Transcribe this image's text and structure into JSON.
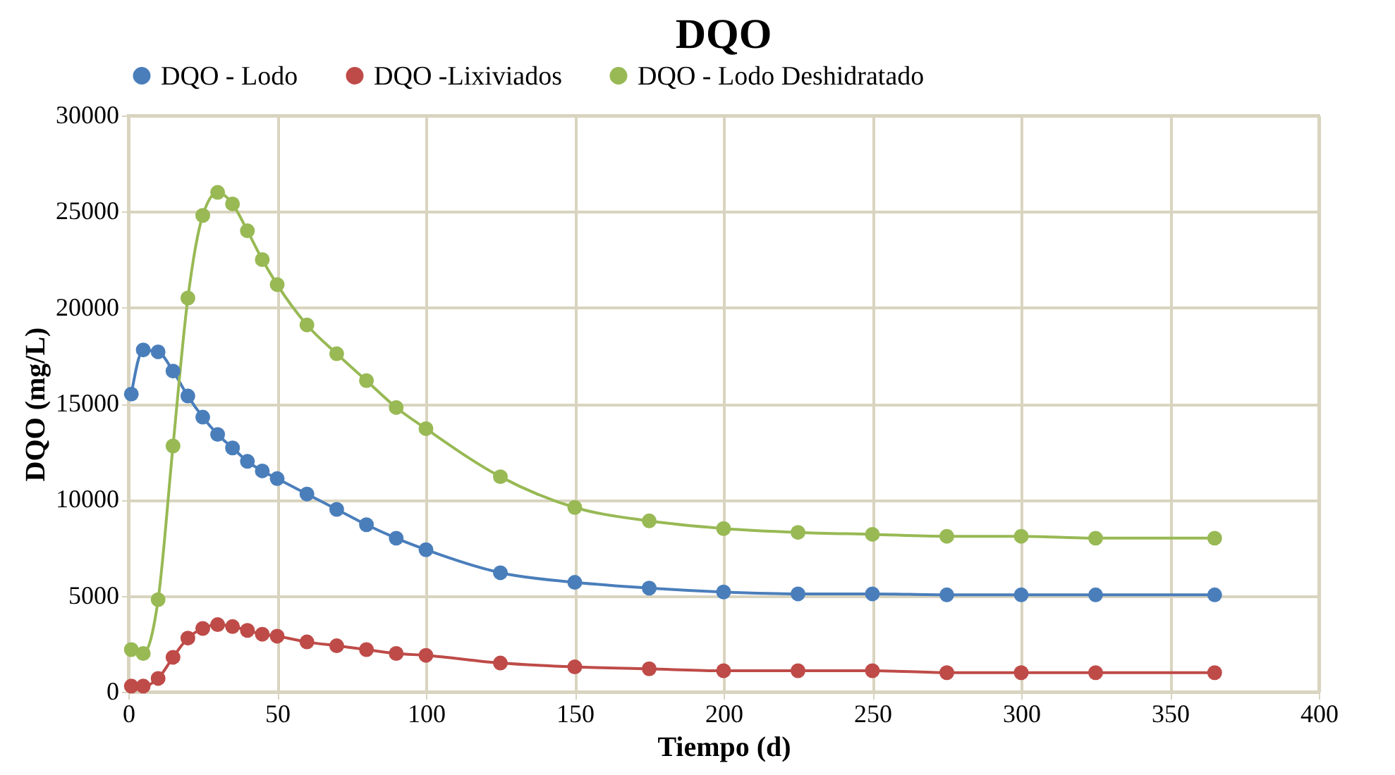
{
  "chart_data": {
    "type": "line",
    "title": "DQO",
    "xlabel": "Tiempo (d)",
    "ylabel": "DQO (mg/L)",
    "x": [
      1,
      5,
      10,
      15,
      20,
      25,
      30,
      35,
      40,
      45,
      50,
      60,
      70,
      80,
      90,
      100,
      125,
      150,
      175,
      200,
      225,
      250,
      275,
      300,
      325,
      365
    ],
    "series": [
      {
        "name": "DQO - Lodo",
        "color": "#4a7ebb",
        "values": [
          15500,
          17800,
          17700,
          16700,
          15400,
          14300,
          13400,
          12700,
          12000,
          11500,
          11100,
          10300,
          9500,
          8700,
          8000,
          7400,
          6200,
          5700,
          5400,
          5200,
          5100,
          5100,
          5050,
          5050,
          5050,
          5050
        ]
      },
      {
        "name": "DQO -Lixiviados",
        "color": "#be4b48",
        "values": [
          300,
          300,
          700,
          1800,
          2800,
          3300,
          3500,
          3400,
          3200,
          3000,
          2900,
          2600,
          2400,
          2200,
          2000,
          1900,
          1500,
          1300,
          1200,
          1100,
          1100,
          1100,
          1000,
          1000,
          1000,
          1000
        ]
      },
      {
        "name": "DQO - Lodo Deshidratado",
        "color": "#98b954",
        "values": [
          2200,
          2000,
          4800,
          12800,
          20500,
          24800,
          26000,
          25400,
          24000,
          22500,
          21200,
          19100,
          17600,
          16200,
          14800,
          13700,
          11200,
          9600,
          8900,
          8500,
          8300,
          8200,
          8100,
          8100,
          8000,
          8000
        ]
      }
    ],
    "xlim": [
      0,
      400
    ],
    "xticks": [
      0,
      50,
      100,
      150,
      200,
      250,
      300,
      350,
      400
    ],
    "ylim": [
      0,
      30000
    ],
    "yticks": [
      0,
      5000,
      10000,
      15000,
      20000,
      25000,
      30000
    ],
    "grid": true,
    "legend": "top",
    "marker": "circle",
    "line_style": "solid"
  }
}
